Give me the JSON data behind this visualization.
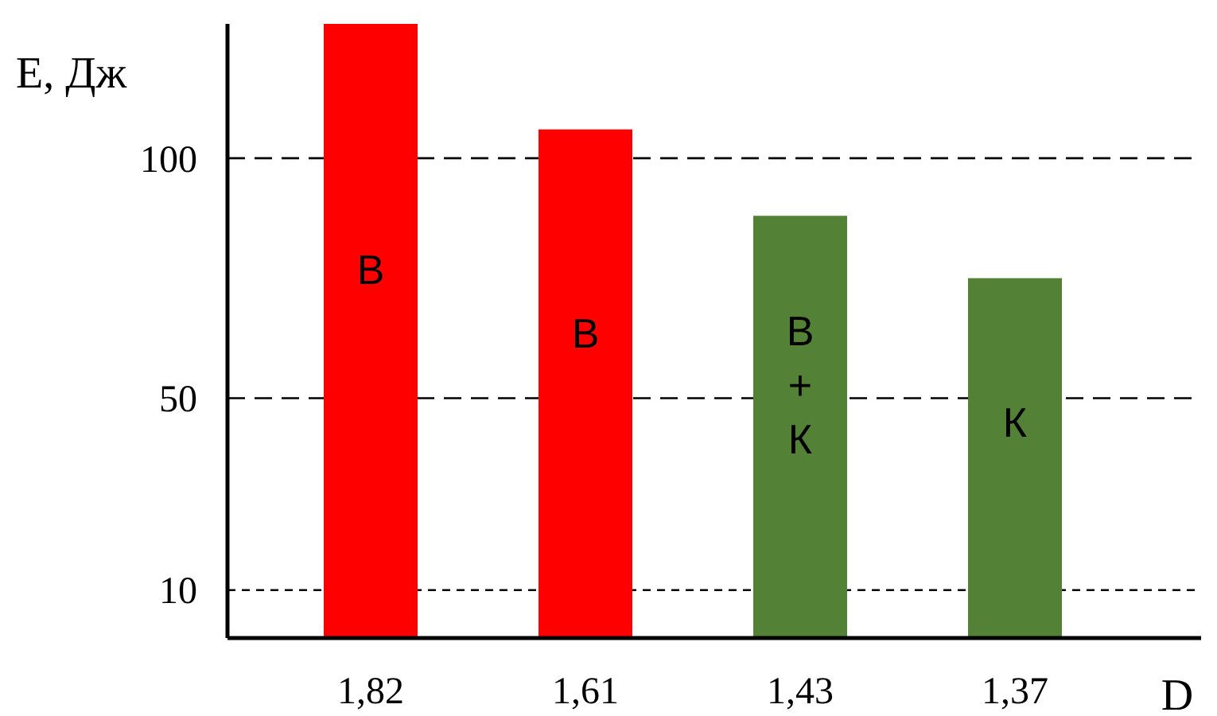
{
  "chart_data": {
    "type": "bar",
    "xlabel": "D",
    "ylabel": "E, Дж",
    "categories": [
      "1,82",
      "1,61",
      "1,43",
      "1,37"
    ],
    "values": [
      128,
      106,
      88,
      75
    ],
    "colors": [
      "#ff0000",
      "#ff0000",
      "#538135",
      "#538135"
    ],
    "value_labels": [
      "В",
      "В",
      "В\n+\nК",
      "К"
    ],
    "ylim": [
      0,
      128
    ],
    "yticks": [
      10,
      50,
      100
    ],
    "grid": "y"
  }
}
